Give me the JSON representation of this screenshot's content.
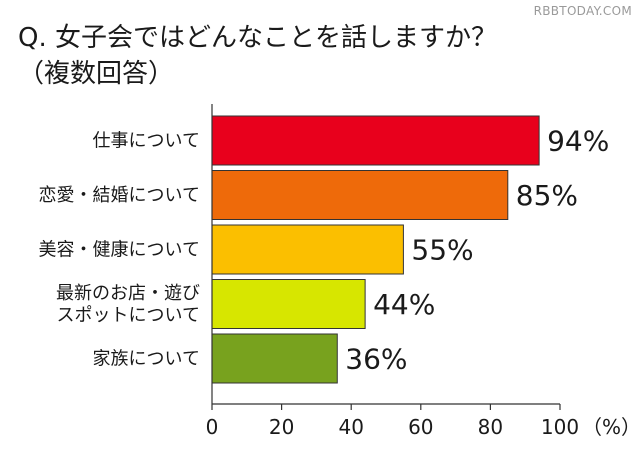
{
  "watermark": "RBBTODAY.COM",
  "title": "Q. 女子会ではどんなことを話しますか？",
  "subtitle": "（複数回答）",
  "chart_data": {
    "type": "bar",
    "orientation": "horizontal",
    "categories": [
      [
        "仕事について"
      ],
      [
        "恋愛・結婚について"
      ],
      [
        "美容・健康について"
      ],
      [
        "最新のお店・遊び",
        "スポットについて"
      ],
      [
        "家族について"
      ]
    ],
    "values": [
      94,
      85,
      55,
      44,
      36
    ],
    "value_labels": [
      "94%",
      "85%",
      "55%",
      "44%",
      "36%"
    ],
    "colors": [
      "#e8001c",
      "#ee6a0a",
      "#fbbf00",
      "#d7e600",
      "#78a21e"
    ],
    "xlim": [
      0,
      100
    ],
    "x_ticks": [
      0,
      20,
      40,
      60,
      80,
      100
    ],
    "x_tick_labels": [
      "0",
      "20",
      "40",
      "60",
      "80",
      "100"
    ],
    "x_unit": "（%）",
    "grid": false
  }
}
